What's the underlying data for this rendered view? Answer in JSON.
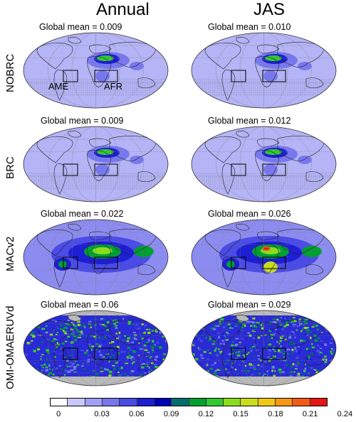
{
  "columns": [
    "Annual",
    "JAS"
  ],
  "rows": [
    {
      "label": "NOBRC",
      "means": [
        "Global mean = 0.009",
        "Global mean = 0.010"
      ]
    },
    {
      "label": "BRC",
      "means": [
        "Global mean = 0.009",
        "Global mean = 0.012"
      ]
    },
    {
      "label": "MACv2",
      "means": [
        "Global mean = 0.022",
        "Global mean = 0.026"
      ]
    },
    {
      "label": "OMI-OMAERUVd",
      "means": [
        "Global mean = 0.06",
        "Global mean = 0.029"
      ]
    }
  ],
  "regions": {
    "ame": "AME",
    "afr": "AFR"
  },
  "colorbar": {
    "colors": [
      "#ffffff",
      "#c8c8ff",
      "#a0a0f5",
      "#7878ee",
      "#4b4be6",
      "#1e1ed2",
      "#0000b4",
      "#006e6e",
      "#00a032",
      "#32c832",
      "#8cdc1e",
      "#c8dc1e",
      "#f0c814",
      "#f59614",
      "#f05a14",
      "#e61414"
    ],
    "ticks": [
      "0",
      "0.03",
      "0.06",
      "0.09",
      "0.12",
      "0.15",
      "0.18",
      "0.21",
      "0.24"
    ]
  }
}
